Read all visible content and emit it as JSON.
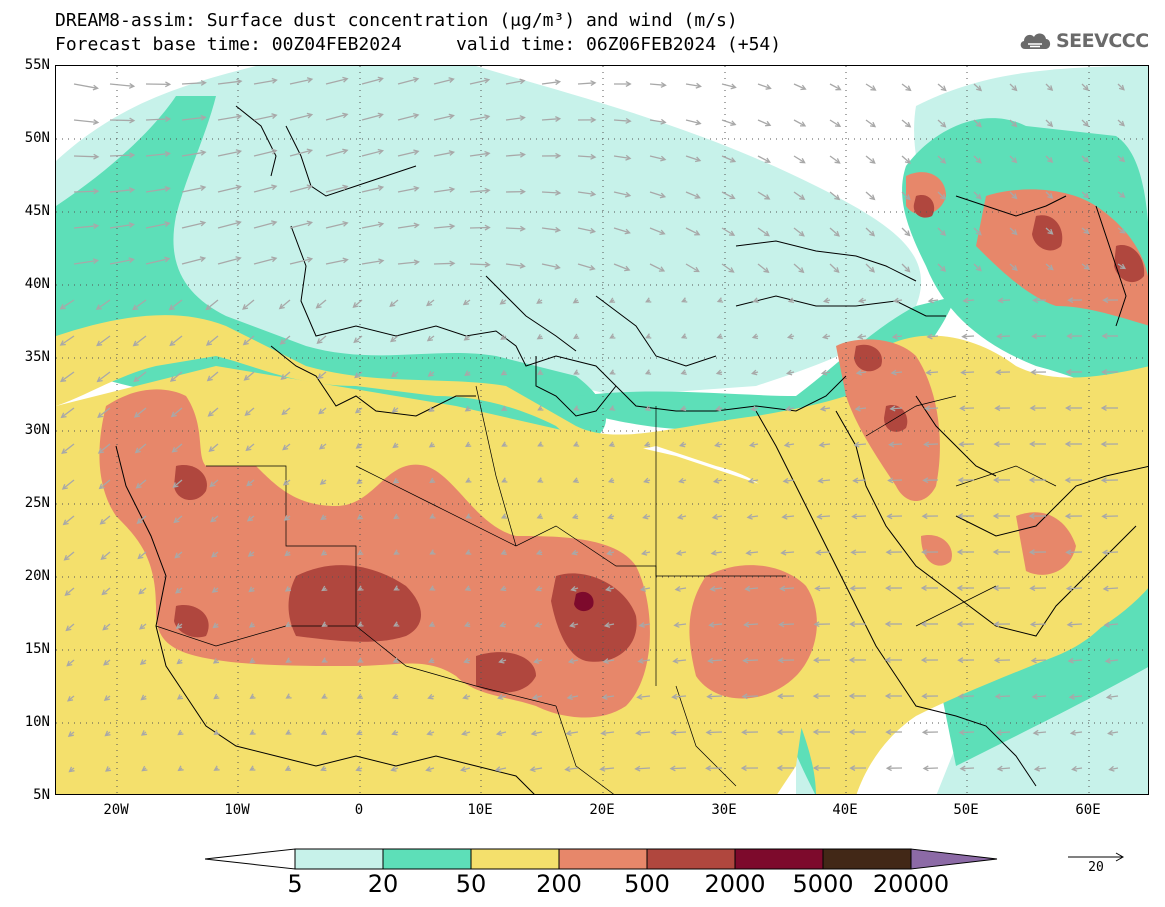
{
  "header": {
    "title_line1": "DREAM8-assim: Surface dust concentration (μg/m³) and wind (m/s)",
    "title_line2": "Forecast base time: 00Z04FEB2024     valid time: 06Z06FEB2024 (+54)"
  },
  "logo": {
    "text": "SEEVCCC",
    "icon": "cloud-icon"
  },
  "map": {
    "lat_labels": [
      "55N",
      "50N",
      "45N",
      "40N",
      "35N",
      "30N",
      "25N",
      "20N",
      "15N",
      "10N",
      "5N"
    ],
    "lon_labels": [
      "20W",
      "10W",
      "0",
      "10E",
      "20E",
      "30E",
      "40E",
      "50E",
      "60E"
    ],
    "extent": {
      "lon_min": -25,
      "lon_max": 65,
      "lat_min": 5,
      "lat_max": 55
    },
    "wind_arrow_color": "#a8a8a8",
    "coast_color": "#000000"
  },
  "colorbar": {
    "levels": [
      "5",
      "20",
      "50",
      "200",
      "500",
      "2000",
      "5000",
      "20000"
    ],
    "colors": [
      "#c7f2ea",
      "#5ddfb8",
      "#f4e06c",
      "#e7876a",
      "#b0473e",
      "#7d0a2c",
      "#422817"
    ],
    "under_color": "#ffffff",
    "over_color": "#8c6aa6"
  },
  "reference_vector": {
    "label": "20"
  }
}
